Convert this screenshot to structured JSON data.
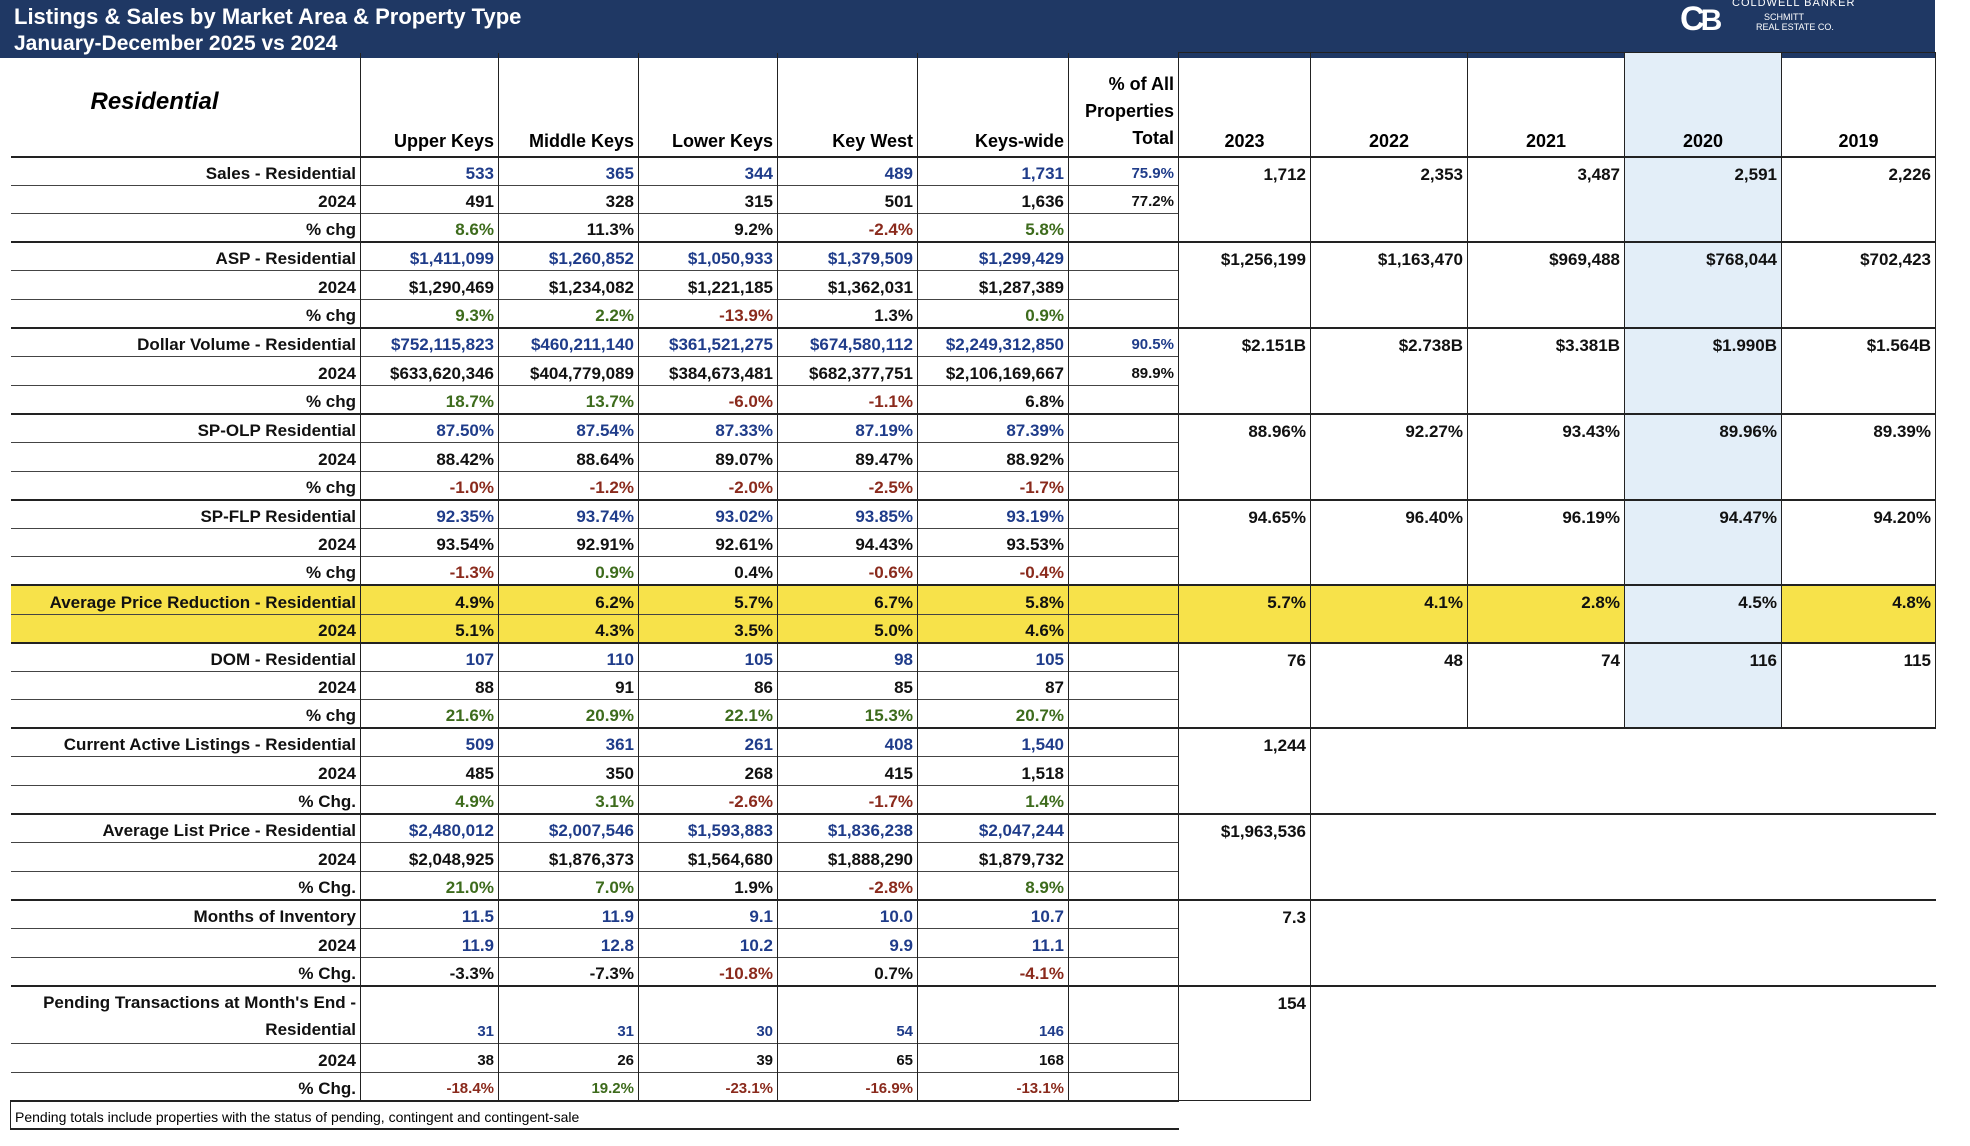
{
  "header": {
    "title": "Listings & Sales by Market Area & Property Type",
    "subtitle": "January-December 2025 vs 2024",
    "logo": {
      "mark": "CB",
      "line1": "COLDWELL BANKER",
      "line2": "SCHMITT",
      "line3": "REAL ESTATE CO."
    },
    "band_color": "#1f3864"
  },
  "table": {
    "section": "Residential",
    "columns": [
      "Upper Keys",
      "Middle Keys",
      "Lower Keys",
      "Key West",
      "Keys-wide"
    ],
    "pct_header": [
      "% of All",
      "Properties",
      "Total"
    ],
    "years": [
      "2023",
      "2022",
      "2021",
      "2020",
      "2019"
    ],
    "colors": {
      "current": "#1f3c8a",
      "positive": "#3d6b1c",
      "negative": "#8a2a1c",
      "highlight": "#f7e24a",
      "year_2020_shade": "#e3eef8"
    },
    "groups": [
      {
        "rows": [
          {
            "label": "Sales - Residential",
            "values": [
              "533",
              "365",
              "344",
              "489",
              "1,731"
            ],
            "tones": [
              "b",
              "b",
              "b",
              "b",
              "b"
            ],
            "pct": "75.9%"
          },
          {
            "label": "2024",
            "values": [
              "491",
              "328",
              "315",
              "501",
              "1,636"
            ],
            "tones": [
              "k",
              "k",
              "k",
              "k",
              "k"
            ],
            "pct": "77.2%"
          },
          {
            "label": "% chg",
            "values": [
              "8.6%",
              "11.3%",
              "9.2%",
              "-2.4%",
              "5.8%"
            ],
            "tones": [
              "g",
              "k",
              "k",
              "r",
              "g"
            ],
            "pct": ""
          }
        ],
        "history": [
          "1,712",
          "2,353",
          "3,487",
          "2,591",
          "2,226"
        ]
      },
      {
        "rows": [
          {
            "label": "ASP - Residential",
            "values": [
              "$1,411,099",
              "$1,260,852",
              "$1,050,933",
              "$1,379,509",
              "$1,299,429"
            ],
            "tones": [
              "b",
              "b",
              "b",
              "b",
              "b"
            ]
          },
          {
            "label": "2024",
            "values": [
              "$1,290,469",
              "$1,234,082",
              "$1,221,185",
              "$1,362,031",
              "$1,287,389"
            ],
            "tones": [
              "k",
              "k",
              "k",
              "k",
              "k"
            ]
          },
          {
            "label": "% chg",
            "values": [
              "9.3%",
              "2.2%",
              "-13.9%",
              "1.3%",
              "0.9%"
            ],
            "tones": [
              "g",
              "g",
              "r",
              "k",
              "g"
            ]
          }
        ],
        "history": [
          "$1,256,199",
          "$1,163,470",
          "$969,488",
          "$768,044",
          "$702,423"
        ]
      },
      {
        "rows": [
          {
            "label": "Dollar Volume - Residential",
            "values": [
              "$752,115,823",
              "$460,211,140",
              "$361,521,275",
              "$674,580,112",
              "$2,249,312,850"
            ],
            "tones": [
              "b",
              "b",
              "b",
              "b",
              "b"
            ],
            "pct": "90.5%"
          },
          {
            "label": "2024",
            "values": [
              "$633,620,346",
              "$404,779,089",
              "$384,673,481",
              "$682,377,751",
              "$2,106,169,667"
            ],
            "tones": [
              "k",
              "k",
              "k",
              "k",
              "k"
            ],
            "pct": "89.9%"
          },
          {
            "label": "% chg",
            "values": [
              "18.7%",
              "13.7%",
              "-6.0%",
              "-1.1%",
              "6.8%"
            ],
            "tones": [
              "g",
              "g",
              "r",
              "r",
              "k"
            ],
            "pct": ""
          }
        ],
        "history": [
          "$2.151B",
          "$2.738B",
          "$3.381B",
          "$1.990B",
          "$1.564B"
        ]
      },
      {
        "rows": [
          {
            "label": "SP-OLP Residential",
            "values": [
              "87.50%",
              "87.54%",
              "87.33%",
              "87.19%",
              "87.39%"
            ],
            "tones": [
              "b",
              "b",
              "b",
              "b",
              "b"
            ]
          },
          {
            "label": "2024",
            "values": [
              "88.42%",
              "88.64%",
              "89.07%",
              "89.47%",
              "88.92%"
            ],
            "tones": [
              "k",
              "k",
              "k",
              "k",
              "k"
            ]
          },
          {
            "label": "% chg",
            "values": [
              "-1.0%",
              "-1.2%",
              "-2.0%",
              "-2.5%",
              "-1.7%"
            ],
            "tones": [
              "r",
              "r",
              "r",
              "r",
              "r"
            ]
          }
        ],
        "history": [
          "88.96%",
          "92.27%",
          "93.43%",
          "89.96%",
          "89.39%"
        ]
      },
      {
        "rows": [
          {
            "label": "SP-FLP Residential",
            "values": [
              "92.35%",
              "93.74%",
              "93.02%",
              "93.85%",
              "93.19%"
            ],
            "tones": [
              "b",
              "b",
              "b",
              "b",
              "b"
            ]
          },
          {
            "label": "2024",
            "values": [
              "93.54%",
              "92.91%",
              "92.61%",
              "94.43%",
              "93.53%"
            ],
            "tones": [
              "k",
              "k",
              "k",
              "k",
              "k"
            ]
          },
          {
            "label": "% chg",
            "values": [
              "-1.3%",
              "0.9%",
              "0.4%",
              "-0.6%",
              "-0.4%"
            ],
            "tones": [
              "r",
              "g",
              "k",
              "r",
              "r"
            ]
          }
        ],
        "history": [
          "94.65%",
          "96.40%",
          "96.19%",
          "94.47%",
          "94.20%"
        ]
      },
      {
        "highlight": true,
        "rows": [
          {
            "label": "Average Price Reduction - Residential",
            "values": [
              "4.9%",
              "6.2%",
              "5.7%",
              "6.7%",
              "5.8%"
            ],
            "tones": [
              "k",
              "k",
              "k",
              "k",
              "k"
            ]
          },
          {
            "label": "2024",
            "values": [
              "5.1%",
              "4.3%",
              "3.5%",
              "5.0%",
              "4.6%"
            ],
            "tones": [
              "k",
              "k",
              "k",
              "k",
              "k"
            ]
          }
        ],
        "history": [
          "5.7%",
          "4.1%",
          "2.8%",
          "4.5%",
          "4.8%"
        ]
      },
      {
        "rows": [
          {
            "label": "DOM - Residential",
            "values": [
              "107",
              "110",
              "105",
              "98",
              "105"
            ],
            "tones": [
              "b",
              "b",
              "b",
              "b",
              "b"
            ]
          },
          {
            "label": "2024",
            "values": [
              "88",
              "91",
              "86",
              "85",
              "87"
            ],
            "tones": [
              "k",
              "k",
              "k",
              "k",
              "k"
            ]
          },
          {
            "label": "% chg",
            "values": [
              "21.6%",
              "20.9%",
              "22.1%",
              "15.3%",
              "20.7%"
            ],
            "tones": [
              "g",
              "g",
              "g",
              "g",
              "g"
            ]
          }
        ],
        "history": [
          "76",
          "48",
          "74",
          "116",
          "115"
        ]
      },
      {
        "rows": [
          {
            "label": "Current Active Listings - Residential",
            "values": [
              "509",
              "361",
              "261",
              "408",
              "1,540"
            ],
            "tones": [
              "b",
              "b",
              "b",
              "b",
              "b"
            ]
          },
          {
            "label": "2024",
            "values": [
              "485",
              "350",
              "268",
              "415",
              "1,518"
            ],
            "tones": [
              "k",
              "k",
              "k",
              "k",
              "k"
            ]
          },
          {
            "label": "% Chg.",
            "values": [
              "4.9%",
              "3.1%",
              "-2.6%",
              "-1.7%",
              "1.4%"
            ],
            "tones": [
              "g",
              "g",
              "r",
              "r",
              "g"
            ]
          }
        ],
        "history": [
          "1,244"
        ]
      },
      {
        "rows": [
          {
            "label": "Average List Price - Residential",
            "values": [
              "$2,480,012",
              "$2,007,546",
              "$1,593,883",
              "$1,836,238",
              "$2,047,244"
            ],
            "tones": [
              "b",
              "b",
              "b",
              "b",
              "b"
            ]
          },
          {
            "label": "2024",
            "values": [
              "$2,048,925",
              "$1,876,373",
              "$1,564,680",
              "$1,888,290",
              "$1,879,732"
            ],
            "tones": [
              "k",
              "k",
              "k",
              "k",
              "k"
            ]
          },
          {
            "label": "% Chg.",
            "values": [
              "21.0%",
              "7.0%",
              "1.9%",
              "-2.8%",
              "8.9%"
            ],
            "tones": [
              "g",
              "g",
              "k",
              "r",
              "g"
            ]
          }
        ],
        "history": [
          "$1,963,536"
        ]
      },
      {
        "rows": [
          {
            "label": "Months of Inventory",
            "values": [
              "11.5",
              "11.9",
              "9.1",
              "10.0",
              "10.7"
            ],
            "tones": [
              "b",
              "b",
              "b",
              "b",
              "b"
            ]
          },
          {
            "label": "2024",
            "values": [
              "11.9",
              "12.8",
              "10.2",
              "9.9",
              "11.1"
            ],
            "tones": [
              "b",
              "b",
              "b",
              "b",
              "b"
            ]
          },
          {
            "label": "% Chg.",
            "values": [
              "-3.3%",
              "-7.3%",
              "-10.8%",
              "0.7%",
              "-4.1%"
            ],
            "tones": [
              "k",
              "k",
              "r",
              "k",
              "r"
            ]
          }
        ],
        "history": [
          "7.3"
        ]
      },
      {
        "tall": true,
        "rows": [
          {
            "label": "Pending Transactions at Month's End - Residential",
            "values": [
              "31",
              "31",
              "30",
              "54",
              "146"
            ],
            "tones": [
              "b",
              "b",
              "b",
              "b",
              "b"
            ]
          },
          {
            "label": "2024",
            "values": [
              "38",
              "26",
              "39",
              "65",
              "168"
            ],
            "tones": [
              "k",
              "k",
              "k",
              "k",
              "k"
            ]
          },
          {
            "label": "% Chg.",
            "values": [
              "-18.4%",
              "19.2%",
              "-23.1%",
              "-16.9%",
              "-13.1%"
            ],
            "tones": [
              "r",
              "g",
              "r",
              "r",
              "r"
            ]
          }
        ],
        "history": [
          "154"
        ]
      }
    ],
    "footnote": "Pending totals include properties with the status of pending, contingent and contingent-sale"
  }
}
